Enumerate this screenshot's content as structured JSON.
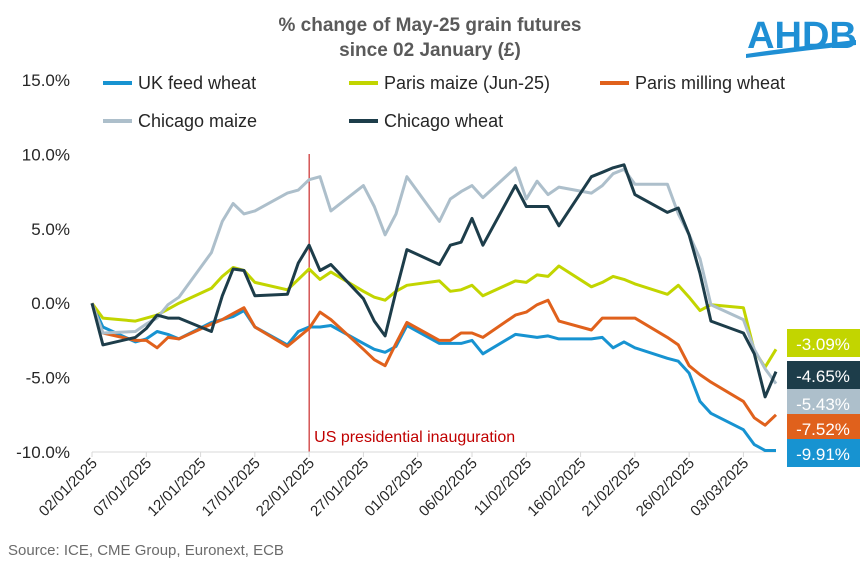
{
  "brand": {
    "logo_text": "AHDB"
  },
  "source": "Source: ICE, CME Group, Euronext, ECB",
  "chart_data": {
    "type": "line",
    "title": "% change of May-25 grain futures",
    "subtitle": "since 02 January (£)",
    "yticks": [
      "15.0%",
      "10.0%",
      "5.0%",
      "0.0%",
      "-5.0%",
      "-10.0%"
    ],
    "ylim": [
      -10,
      15
    ],
    "xticks": [
      "02/01/2025",
      "07/01/2025",
      "12/01/2025",
      "17/01/2025",
      "22/01/2025",
      "27/01/2025",
      "01/02/2025",
      "06/02/2025",
      "11/02/2025",
      "16/02/2025",
      "21/02/2025",
      "26/02/2025",
      "03/03/2025"
    ],
    "x_range": [
      "2025-01-02",
      "2025-03-06"
    ],
    "grid": false,
    "legend_position": "top",
    "annotation": {
      "date": "2025-01-22",
      "label": "US presidential inauguration",
      "color": "#c00000"
    },
    "x": [
      "2025-01-02",
      "2025-01-03",
      "2025-01-06",
      "2025-01-07",
      "2025-01-08",
      "2025-01-09",
      "2025-01-10",
      "2025-01-13",
      "2025-01-14",
      "2025-01-15",
      "2025-01-16",
      "2025-01-17",
      "2025-01-20",
      "2025-01-21",
      "2025-01-22",
      "2025-01-23",
      "2025-01-24",
      "2025-01-27",
      "2025-01-28",
      "2025-01-29",
      "2025-01-30",
      "2025-01-31",
      "2025-02-03",
      "2025-02-04",
      "2025-02-05",
      "2025-02-06",
      "2025-02-07",
      "2025-02-10",
      "2025-02-11",
      "2025-02-12",
      "2025-02-13",
      "2025-02-14",
      "2025-02-17",
      "2025-02-18",
      "2025-02-19",
      "2025-02-20",
      "2025-02-21",
      "2025-02-24",
      "2025-02-25",
      "2025-02-26",
      "2025-02-27",
      "2025-02-28",
      "2025-03-03",
      "2025-03-04",
      "2025-03-05",
      "2025-03-06"
    ],
    "series": [
      {
        "name": "UK feed wheat",
        "color": "#1793d1",
        "end_label": "-9.91%",
        "values": [
          0.0,
          -1.6,
          -2.6,
          -2.4,
          -1.9,
          -2.1,
          -2.4,
          -1.3,
          -1.1,
          -0.9,
          -0.5,
          -1.6,
          -2.8,
          -1.9,
          -1.6,
          -1.6,
          -1.5,
          -2.7,
          -3.1,
          -3.3,
          -2.9,
          -1.5,
          -2.7,
          -2.7,
          -2.7,
          -2.5,
          -3.4,
          -2.1,
          -2.2,
          -2.3,
          -2.2,
          -2.4,
          -2.4,
          -2.3,
          -3.0,
          -2.6,
          -3.0,
          -3.7,
          -3.9,
          -4.7,
          -6.6,
          -7.4,
          -8.5,
          -9.5,
          -9.9,
          -9.9
        ]
      },
      {
        "name": "Paris maize (Jun-25)",
        "color": "#c2d500",
        "end_label": "-3.09%",
        "values": [
          0.0,
          -1.0,
          -1.2,
          -1.0,
          -0.8,
          -0.4,
          0.0,
          1.0,
          1.8,
          2.4,
          2.2,
          1.4,
          0.9,
          1.6,
          2.3,
          1.6,
          2.1,
          0.8,
          0.4,
          0.2,
          0.8,
          1.2,
          1.5,
          0.8,
          0.9,
          1.2,
          0.5,
          1.5,
          1.4,
          1.9,
          1.8,
          2.5,
          1.1,
          1.4,
          1.8,
          1.6,
          1.3,
          0.6,
          1.2,
          0.4,
          -0.5,
          -0.1,
          -0.3,
          -3.2,
          -4.3,
          -3.1
        ]
      },
      {
        "name": "Paris milling wheat",
        "color": "#e0611c",
        "end_label": "-7.52%",
        "values": [
          0.0,
          -2.0,
          -2.5,
          -2.5,
          -3.0,
          -2.3,
          -2.4,
          -1.4,
          -1.1,
          -0.7,
          -0.3,
          -1.6,
          -2.9,
          -2.3,
          -1.7,
          -0.6,
          -1.1,
          -3.1,
          -3.8,
          -4.2,
          -2.7,
          -1.3,
          -2.5,
          -2.5,
          -2.0,
          -2.0,
          -2.3,
          -0.8,
          -0.6,
          -0.1,
          0.2,
          -1.2,
          -1.8,
          -1.0,
          -1.0,
          -1.0,
          -1.0,
          -2.3,
          -2.8,
          -4.2,
          -4.8,
          -5.3,
          -6.6,
          -7.7,
          -8.2,
          -7.5
        ]
      },
      {
        "name": "Chicago maize",
        "color": "#adbfcb",
        "end_label": "-5.43%",
        "values": [
          0.0,
          -2.0,
          -1.9,
          -1.4,
          -1.0,
          -0.1,
          0.4,
          3.4,
          5.5,
          6.7,
          6.0,
          6.2,
          7.4,
          7.6,
          8.3,
          8.5,
          6.2,
          7.9,
          6.5,
          4.6,
          6.0,
          8.5,
          5.5,
          7.0,
          7.5,
          7.9,
          7.1,
          9.1,
          7.0,
          8.2,
          7.3,
          7.8,
          7.4,
          7.9,
          8.7,
          9.0,
          8.0,
          8.0,
          6.0,
          4.6,
          3.0,
          -0.1,
          -1.1,
          -3.1,
          -4.4,
          -5.4
        ]
      },
      {
        "name": "Chicago wheat",
        "color": "#1d3d4a",
        "end_label": "-4.65%",
        "values": [
          0.0,
          -2.8,
          -2.3,
          -1.7,
          -0.8,
          -1.0,
          -1.0,
          -1.9,
          0.5,
          2.3,
          2.2,
          0.5,
          0.6,
          2.7,
          3.9,
          2.2,
          2.6,
          0.3,
          -1.2,
          -2.2,
          0.8,
          3.6,
          2.6,
          3.9,
          4.1,
          5.7,
          3.9,
          7.9,
          6.5,
          6.5,
          6.5,
          5.2,
          8.5,
          8.8,
          9.1,
          9.3,
          7.3,
          6.1,
          6.4,
          4.6,
          2.0,
          -1.2,
          -2.0,
          -3.4,
          -6.3,
          -4.6
        ]
      }
    ]
  }
}
